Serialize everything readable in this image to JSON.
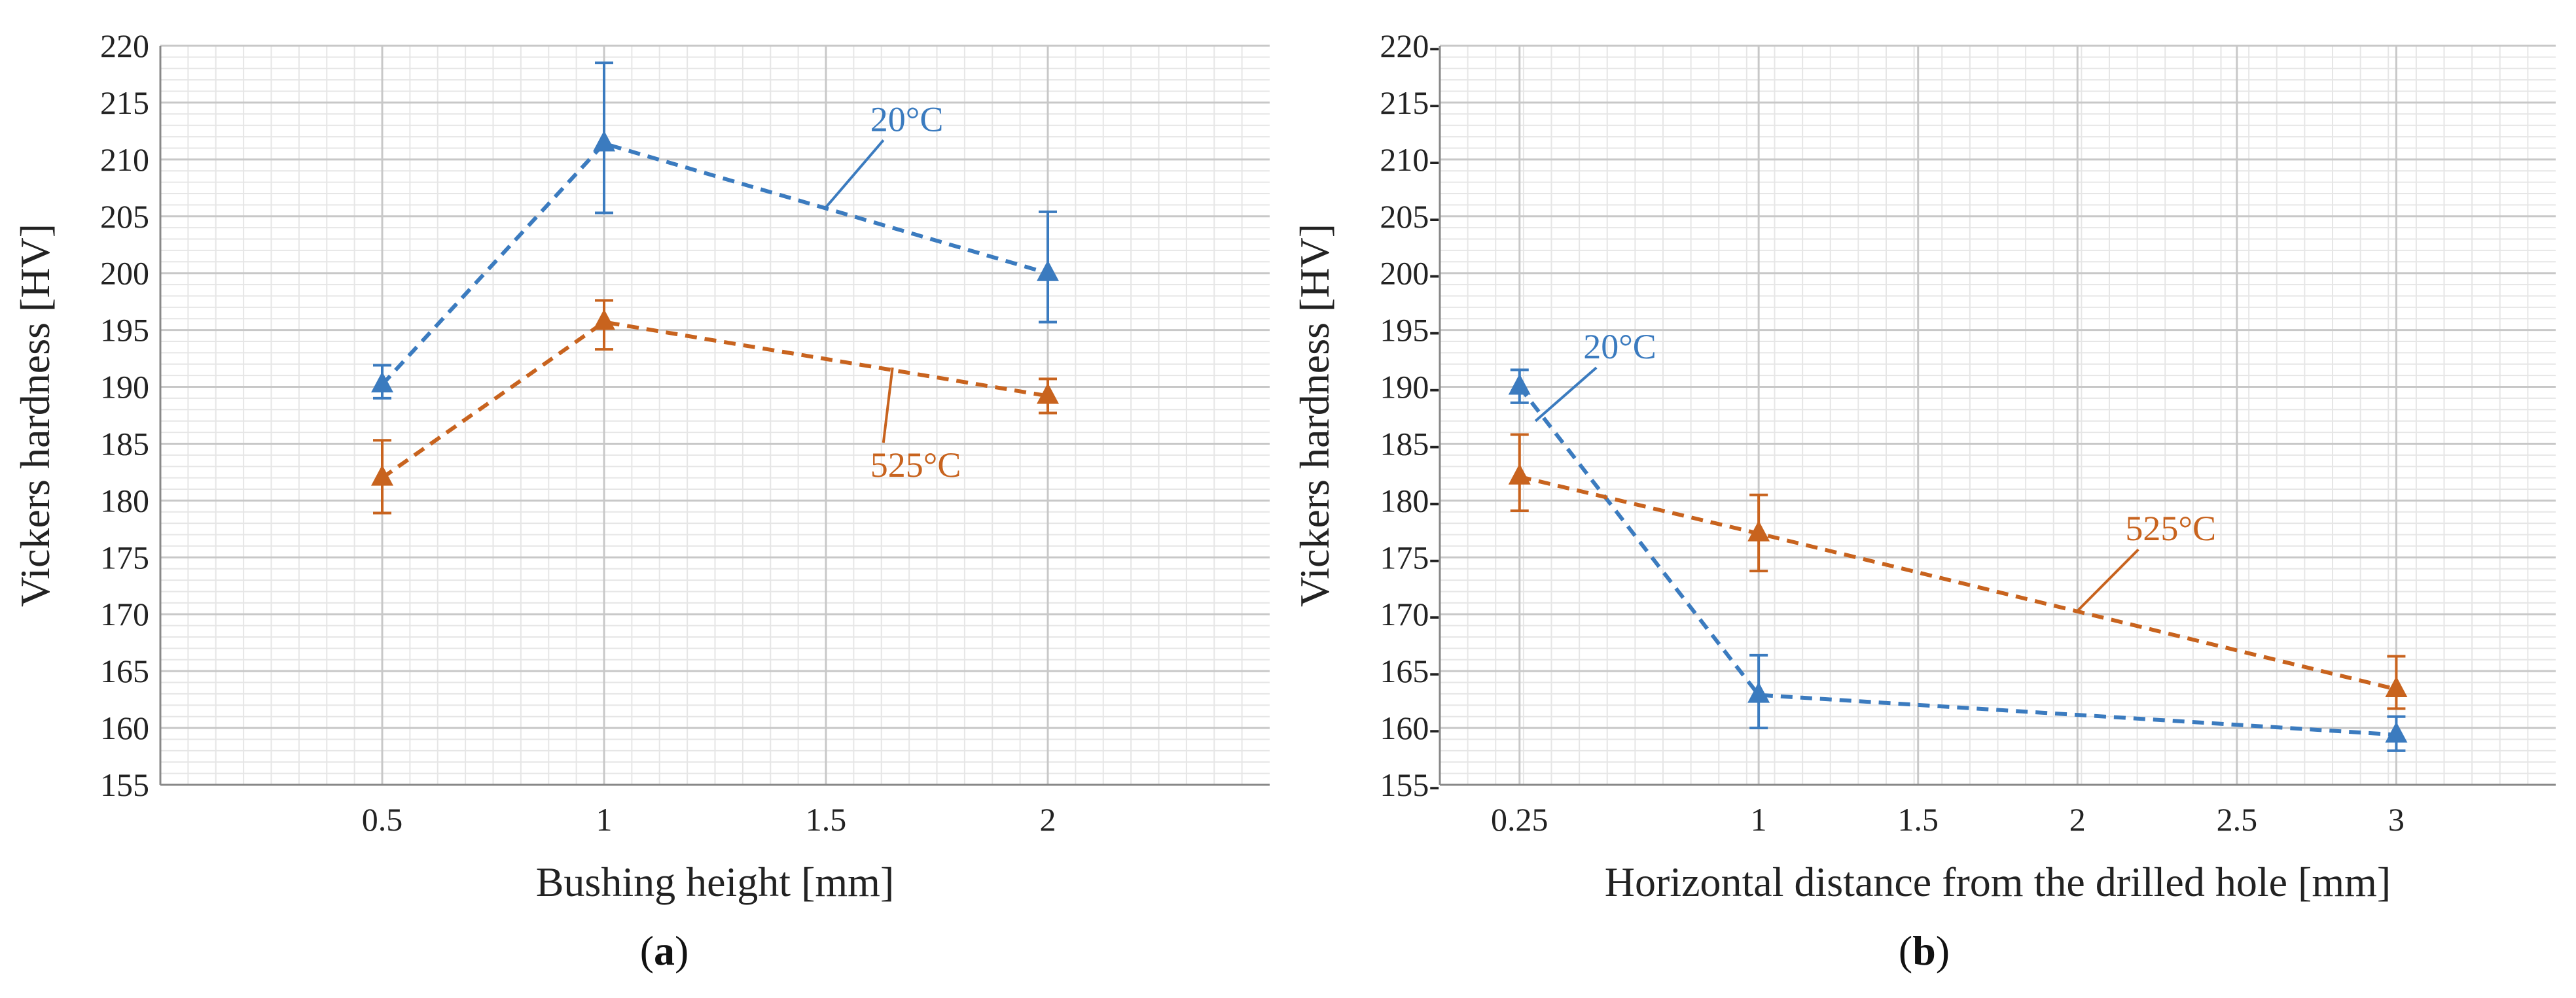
{
  "colors": {
    "blue": "#3b7bbf",
    "orange": "#c8631e",
    "grid_major": "#c8c8c8",
    "grid_minor": "#e6e6e6",
    "axis": "#888888"
  },
  "chart_data": [
    {
      "type": "line",
      "panel_label": "a",
      "title": "",
      "xlabel": "Bushing height [mm]",
      "ylabel": "Vickers hardness [HV]",
      "xlim": [
        0,
        2.5
      ],
      "ylim": [
        155,
        220
      ],
      "x_ticks": [
        0.5,
        1,
        1.5,
        2
      ],
      "x_tick_labels": [
        "0.5",
        "1",
        "1.5",
        "2"
      ],
      "y_ticks": [
        155,
        160,
        165,
        170,
        175,
        180,
        185,
        190,
        195,
        200,
        205,
        210,
        215,
        220
      ],
      "y_tick_labels": [
        "155",
        "160",
        "165",
        "170",
        "175",
        "180",
        "185",
        "190",
        "195",
        "200",
        "205",
        "210",
        "215",
        "220"
      ],
      "series": [
        {
          "name": "20°C",
          "color": "#3b7bbf",
          "x": [
            0.5,
            1,
            2
          ],
          "y": [
            190.2,
            211.4,
            200.0
          ],
          "err_low": [
            189.0,
            205.3,
            195.7
          ],
          "err_high": [
            191.9,
            218.5,
            205.4
          ],
          "label_at": [
            1.6,
            212.5
          ],
          "pointer_to": [
            1.5,
            205.8
          ]
        },
        {
          "name": "525°C",
          "color": "#c8631e",
          "x": [
            0.5,
            1,
            2
          ],
          "y": [
            182.0,
            195.7,
            189.2
          ],
          "err_low": [
            178.9,
            193.3,
            187.7
          ],
          "err_high": [
            185.3,
            197.6,
            190.7
          ],
          "label_at": [
            1.6,
            182.1
          ],
          "pointer_to": [
            1.65,
            191.7
          ]
        }
      ]
    },
    {
      "type": "line",
      "panel_label": "b",
      "title": "",
      "xlabel": "Horizontal distance from the drilled hole [mm]",
      "ylabel": "Vickers hardness [HV]",
      "xlim": [
        0,
        3.5
      ],
      "ylim": [
        155,
        220
      ],
      "x_ticks": [
        0.25,
        1,
        1.5,
        2,
        2.5,
        3
      ],
      "x_tick_labels": [
        "0.25",
        "1",
        "1.5",
        "2",
        "2.5",
        "3"
      ],
      "y_ticks": [
        155,
        160,
        165,
        170,
        175,
        180,
        185,
        190,
        195,
        200,
        205,
        210,
        215,
        220
      ],
      "y_tick_labels": [
        "155-",
        "160-",
        "165-",
        "170-",
        "175-",
        "180-",
        "185-",
        "190-",
        "195-",
        "200-",
        "205-",
        "210-",
        "215-",
        "220-"
      ],
      "series": [
        {
          "name": "20°C",
          "color": "#3b7bbf",
          "x": [
            0.25,
            1,
            3
          ],
          "y": [
            190.0,
            162.9,
            159.4
          ],
          "err_low": [
            188.6,
            160.0,
            158.0
          ],
          "err_high": [
            191.5,
            166.4,
            161.0
          ],
          "label_at": [
            0.45,
            192.5
          ],
          "pointer_to": [
            0.3,
            187.0
          ]
        },
        {
          "name": "525°C",
          "color": "#c8631e",
          "x": [
            0.25,
            1,
            3
          ],
          "y": [
            182.1,
            177.1,
            163.4
          ],
          "err_low": [
            179.1,
            173.8,
            161.7
          ],
          "err_high": [
            185.8,
            180.5,
            166.3
          ],
          "label_at": [
            2.15,
            176.5
          ],
          "pointer_to": [
            2.0,
            170.3
          ]
        }
      ]
    }
  ]
}
